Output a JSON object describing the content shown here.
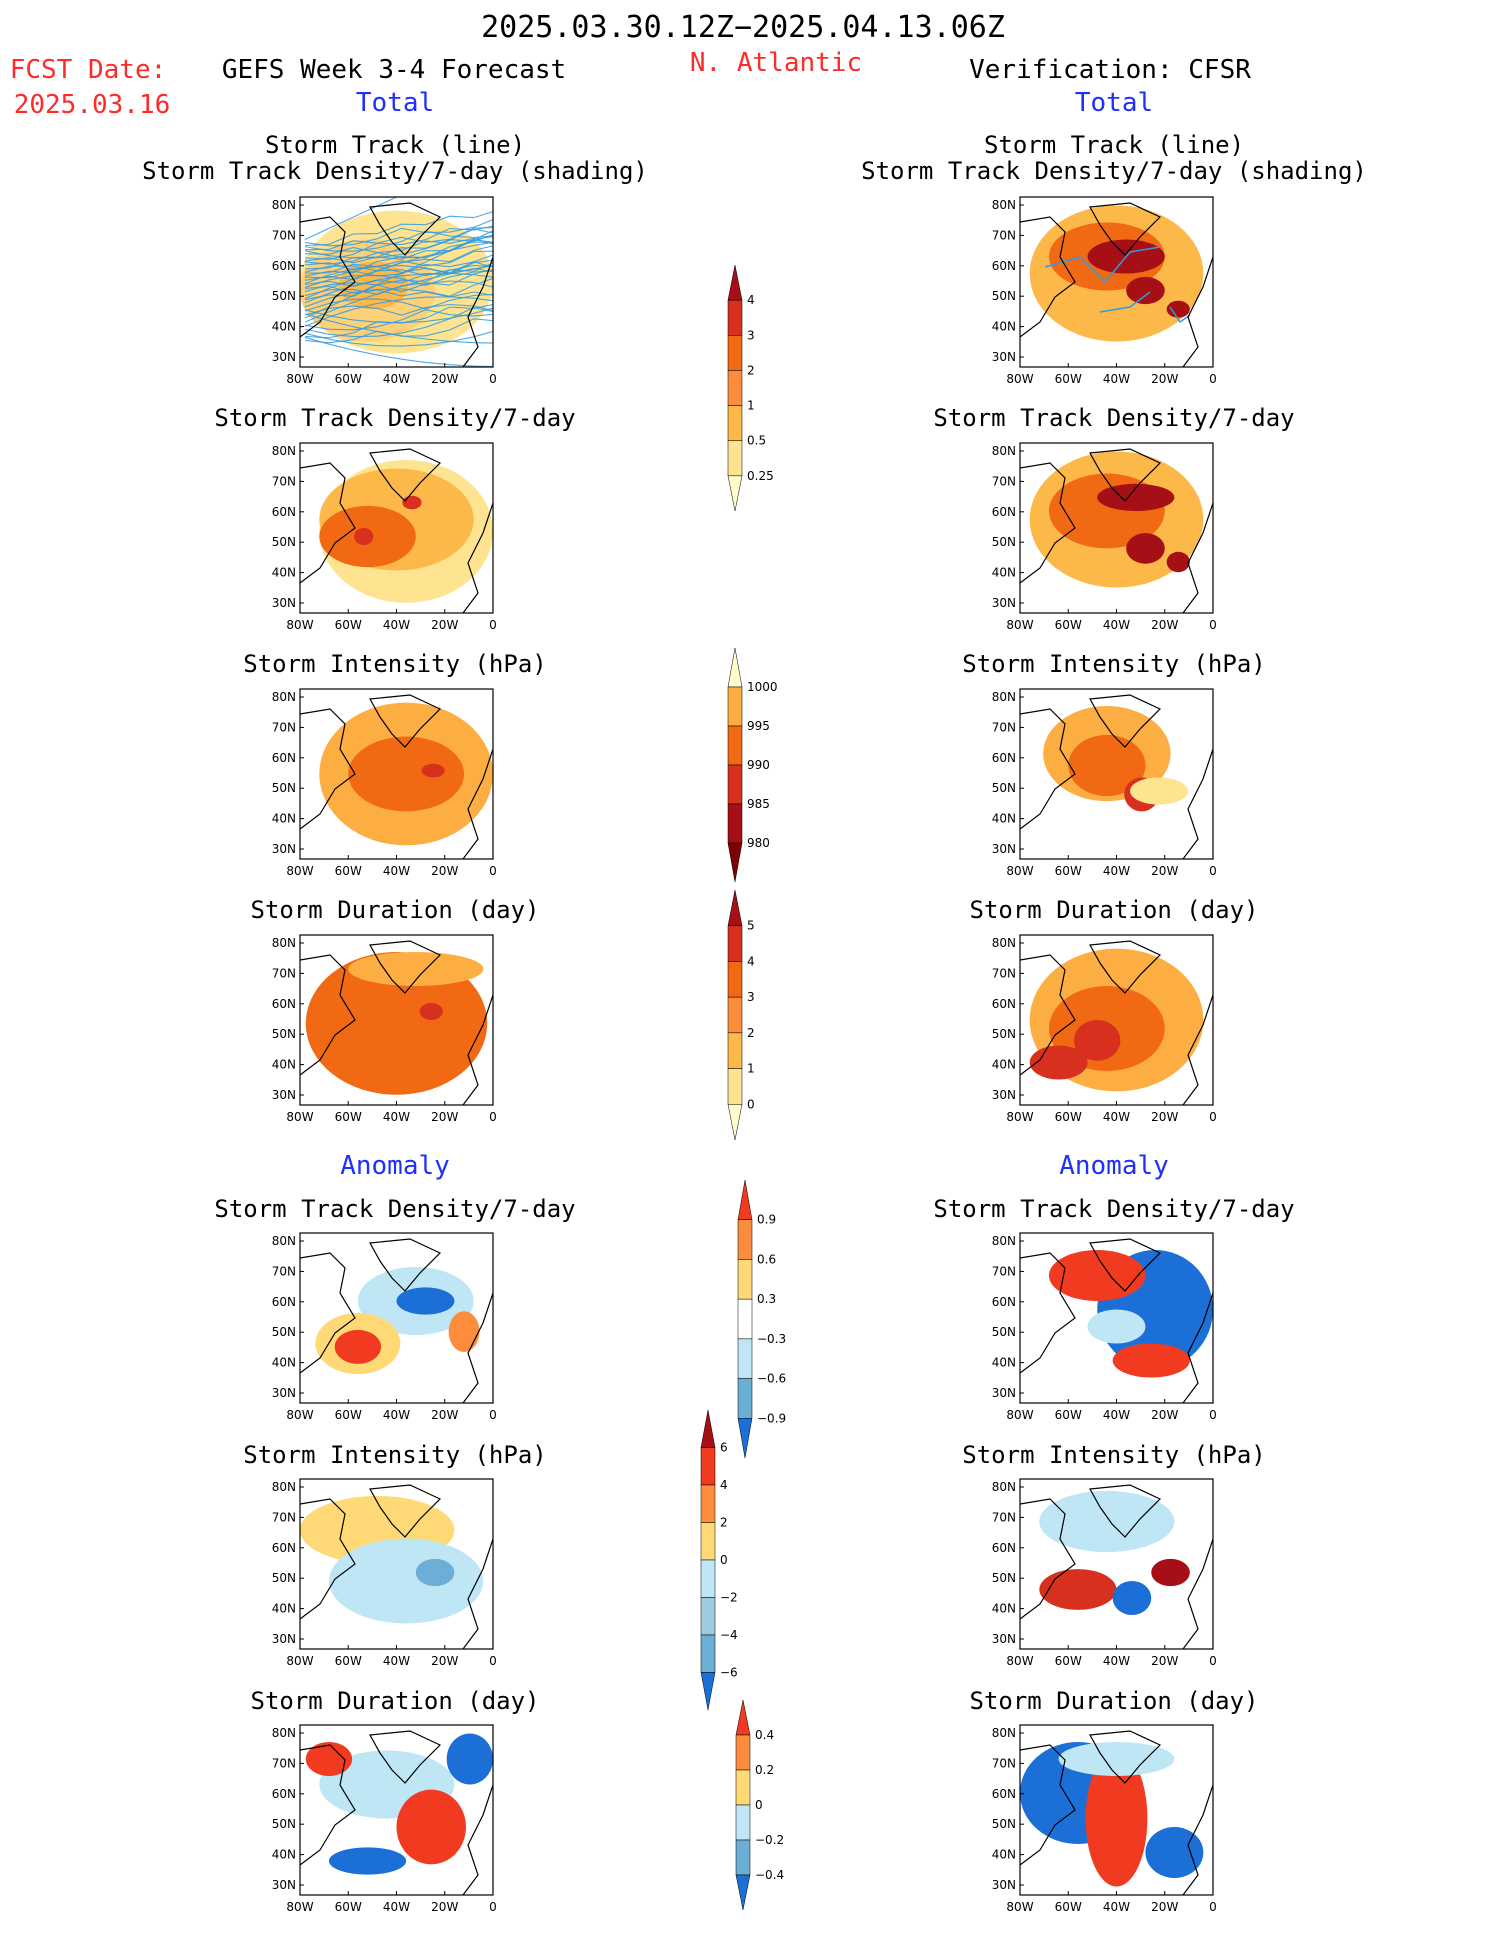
{
  "header": {
    "period": "2025.03.30.12Z−2025.04.13.06Z",
    "fcst_label": "FCST Date:",
    "fcst_date": "2025.03.16",
    "forecast_title": "GEFS Week 3-4 Forecast",
    "region": "N. Atlantic",
    "verification_title": "Verification: CFSR",
    "total_label": "Total",
    "anomaly_label": "Anomaly"
  },
  "titles": {
    "track_line": "Storm Track (line)",
    "track_density_shading": "Storm Track Density/7-day (shading)",
    "track_density": "Storm Track Density/7-day",
    "intensity": "Storm Intensity (hPa)",
    "duration": "Storm Duration (day)"
  },
  "axes": {
    "lat_ticks": [
      "80N",
      "70N",
      "60N",
      "50N",
      "40N",
      "30N"
    ],
    "lon_ticks": [
      "80W",
      "60W",
      "40W",
      "20W",
      "0"
    ]
  },
  "colorbars": {
    "density": {
      "labels": [
        "4",
        "3",
        "2",
        "1",
        "0.5",
        "0.25"
      ],
      "colors": [
        "#a50f15",
        "#d7301f",
        "#f16913",
        "#fd8d3c",
        "#fdb84a",
        "#fee391",
        "#fffbcc"
      ]
    },
    "intensity": {
      "labels": [
        "1000",
        "995",
        "990",
        "985",
        "980"
      ],
      "colors": [
        "#fffbcc",
        "#fdae42",
        "#f16913",
        "#d7301f",
        "#a50f15",
        "#7f0000"
      ]
    },
    "duration": {
      "labels": [
        "5",
        "4",
        "3",
        "2",
        "1",
        "0"
      ],
      "colors": [
        "#a50f15",
        "#d7301f",
        "#f16913",
        "#fd8d3c",
        "#fdb84a",
        "#fee391",
        "#fffbcc"
      ]
    },
    "anom_density": {
      "labels": [
        "0.9",
        "0.6",
        "0.3",
        "−0.3",
        "−0.6",
        "−0.9"
      ],
      "colors": [
        "#f03b20",
        "#fd8d3c",
        "#fed976",
        "#ffffff",
        "#bfe6f5",
        "#6baed6",
        "#1c6fd6"
      ]
    },
    "anom_intensity": {
      "labels": [
        "6",
        "4",
        "2",
        "0",
        "−2",
        "−4",
        "−6"
      ],
      "colors": [
        "#a50f15",
        "#f03b20",
        "#fd8d3c",
        "#fed976",
        "#bfe6f5",
        "#9ecae1",
        "#6baed6",
        "#1c6fd6"
      ]
    },
    "anom_duration": {
      "labels": [
        "0.4",
        "0.2",
        "0",
        "−0.2",
        "−0.4"
      ],
      "colors": [
        "#f03b20",
        "#fd8d3c",
        "#fed976",
        "#bfe6f5",
        "#6baed6",
        "#1c6fd6"
      ]
    }
  },
  "palette": {
    "track_line": "#2f9be0",
    "map_land": "#ffffff",
    "coast": "#000000"
  }
}
